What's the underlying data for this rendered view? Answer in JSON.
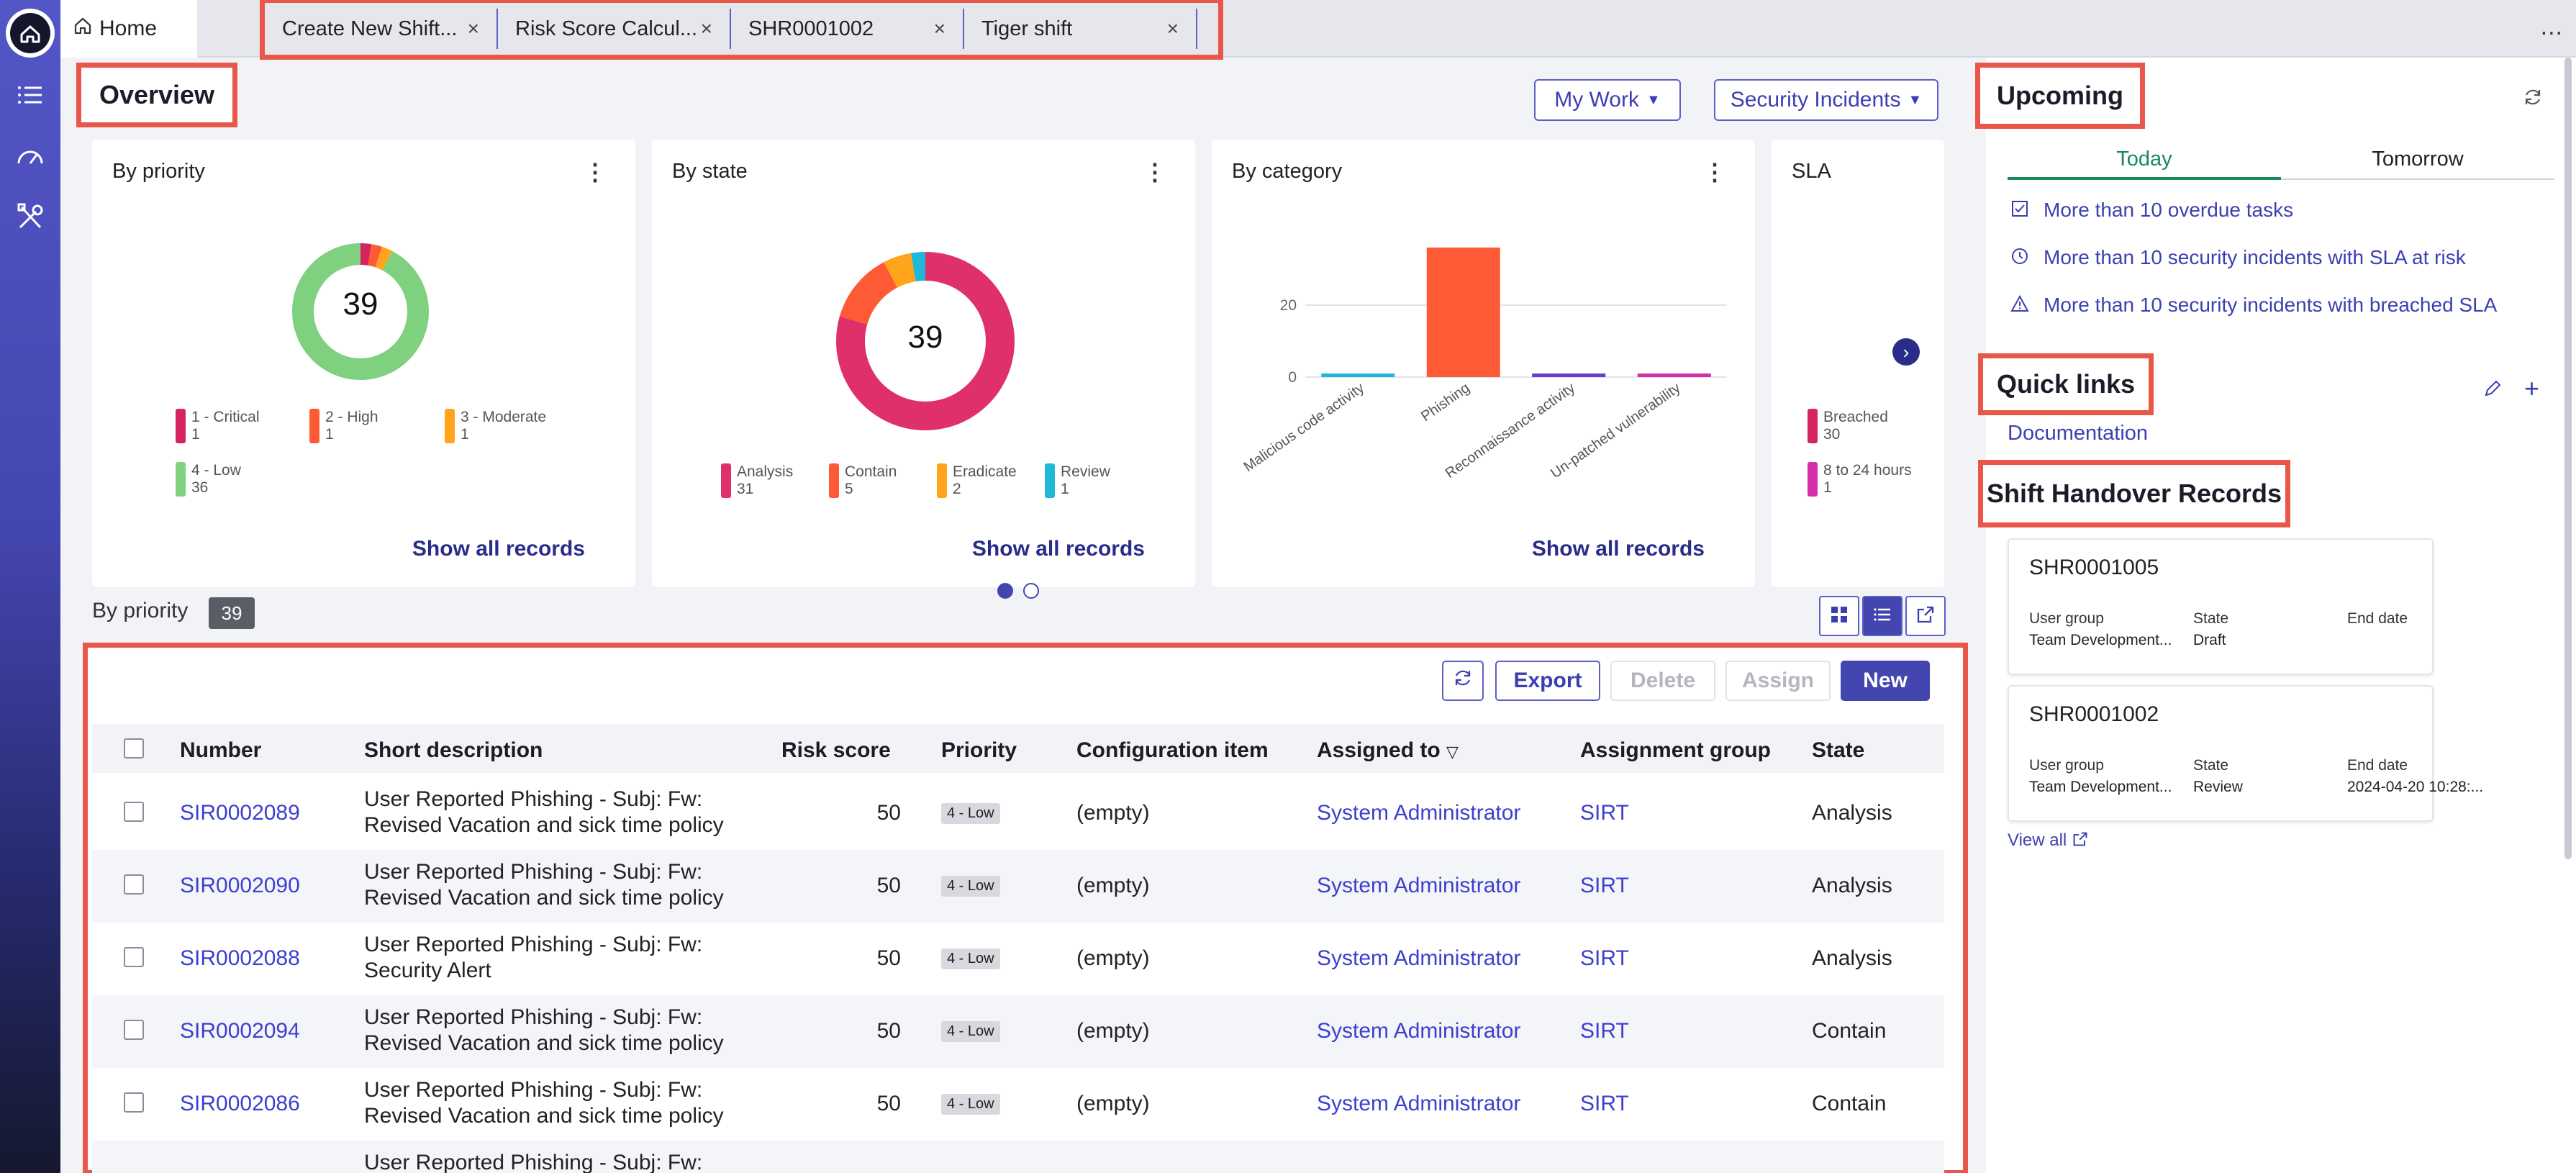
{
  "tabs": {
    "home": "Home",
    "open": [
      "Create New Shift...",
      "Risk Score Calcul...",
      "SHR0001002",
      "Tiger shift"
    ],
    "close_glyph": "×",
    "more": "..."
  },
  "overview": {
    "title": "Overview",
    "my_work": "My Work",
    "security_incidents": "Security Incidents"
  },
  "cards": {
    "priority": {
      "title": "By priority",
      "total": "39",
      "legend": [
        {
          "label": "1 - Critical",
          "count": "1",
          "color": "#d6245f"
        },
        {
          "label": "2 - High",
          "count": "1",
          "color": "#ff5a36"
        },
        {
          "label": "3 - Moderate",
          "count": "1",
          "color": "#ffa41b"
        },
        {
          "label": "4 - Low",
          "count": "36",
          "color": "#7fd07f"
        }
      ],
      "show_all": "Show all records"
    },
    "state": {
      "title": "By state",
      "total": "39",
      "legend": [
        {
          "label": "Analysis",
          "count": "31",
          "color": "#e0306a"
        },
        {
          "label": "Contain",
          "count": "5",
          "color": "#ff5a36"
        },
        {
          "label": "Eradicate",
          "count": "2",
          "color": "#ffa41b"
        },
        {
          "label": "Review",
          "count": "1",
          "color": "#1fb8d8"
        }
      ],
      "show_all": "Show all records"
    },
    "category": {
      "title": "By category",
      "show_all": "Show all records"
    },
    "sla": {
      "title": "SLA",
      "legend": [
        {
          "label": "Breached",
          "count": "30",
          "color": "#d6245f"
        },
        {
          "label": "8 to 24 hours",
          "count": "1",
          "color": "#d62dab"
        }
      ]
    }
  },
  "chart_data": [
    {
      "type": "pie",
      "title": "By priority",
      "categories": [
        "1 - Critical",
        "2 - High",
        "3 - Moderate",
        "4 - Low"
      ],
      "values": [
        1,
        1,
        1,
        36
      ]
    },
    {
      "type": "pie",
      "title": "By state",
      "categories": [
        "Analysis",
        "Contain",
        "Eradicate",
        "Review"
      ],
      "values": [
        31,
        5,
        2,
        1
      ]
    },
    {
      "type": "bar",
      "title": "By category",
      "categories": [
        "Malicious code activity",
        "Phishing",
        "Reconnaissance activity",
        "Un-patched vulnerability"
      ],
      "values": [
        1,
        36,
        1,
        1
      ],
      "colors": [
        "#1fb8d8",
        "#ff5a36",
        "#6a3ad8",
        "#d62dab"
      ],
      "yticks": [
        "0",
        "20"
      ],
      "ylim": [
        0,
        37
      ]
    }
  ],
  "by_priority": {
    "label": "By priority",
    "count": "39"
  },
  "toolbar": {
    "export": "Export",
    "delete": "Delete",
    "assign": "Assign",
    "new": "New"
  },
  "table": {
    "columns": [
      "Number",
      "Short description",
      "Risk score",
      "Priority",
      "Configuration item",
      "Assigned to",
      "Assignment group",
      "State"
    ],
    "rows": [
      {
        "number": "SIR0002089",
        "desc1": "User Reported Phishing - Subj: Fw:",
        "desc2": "Revised Vacation and sick time policy",
        "risk": "50",
        "priority": "4 - Low",
        "ci": "(empty)",
        "assigned": "System Administrator",
        "group": "SIRT",
        "state": "Analysis"
      },
      {
        "number": "SIR0002090",
        "desc1": "User Reported Phishing - Subj: Fw:",
        "desc2": "Revised Vacation and sick time policy",
        "risk": "50",
        "priority": "4 - Low",
        "ci": "(empty)",
        "assigned": "System Administrator",
        "group": "SIRT",
        "state": "Analysis"
      },
      {
        "number": "SIR0002088",
        "desc1": "User Reported Phishing - Subj: Fw:",
        "desc2": "Security Alert",
        "risk": "50",
        "priority": "4 - Low",
        "ci": "(empty)",
        "assigned": "System Administrator",
        "group": "SIRT",
        "state": "Analysis"
      },
      {
        "number": "SIR0002094",
        "desc1": "User Reported Phishing - Subj: Fw:",
        "desc2": "Revised Vacation and sick time policy",
        "risk": "50",
        "priority": "4 - Low",
        "ci": "(empty)",
        "assigned": "System Administrator",
        "group": "SIRT",
        "state": "Contain"
      },
      {
        "number": "SIR0002086",
        "desc1": "User Reported Phishing - Subj: Fw:",
        "desc2": "Revised Vacation and sick time policy",
        "risk": "50",
        "priority": "4 - Low",
        "ci": "(empty)",
        "assigned": "System Administrator",
        "group": "SIRT",
        "state": "Contain"
      },
      {
        "number": "",
        "desc1": "User Reported Phishing - Subj: Fw:",
        "desc2": "",
        "risk": "",
        "priority": "",
        "ci": "",
        "assigned": "",
        "group": "",
        "state": ""
      }
    ]
  },
  "upcoming": {
    "title": "Upcoming",
    "tab_today": "Today",
    "tab_tomorrow": "Tomorrow",
    "items": [
      "More than 10 overdue tasks",
      "More than 10 security incidents with SLA at risk",
      "More than 10 security incidents with breached SLA"
    ]
  },
  "quick_links": {
    "title": "Quick links",
    "documentation": "Documentation"
  },
  "shift_handover": {
    "title": "Shift Handover Records",
    "records": [
      {
        "number": "SHR0001005",
        "user_group_label": "User group",
        "user_group": "Team Development...",
        "state_label": "State",
        "state": "Draft",
        "end_label": "End date",
        "end": ""
      },
      {
        "number": "SHR0001002",
        "user_group_label": "User group",
        "user_group": "Team Development...",
        "state_label": "State",
        "state": "Review",
        "end_label": "End date",
        "end": "2024-04-20 10:28:..."
      }
    ],
    "view_all": "View all"
  },
  "colors": {
    "accent": "#5b5fc7",
    "link": "#3c3fd0",
    "highlight": "#e8574a",
    "green": "#1a8a5a"
  }
}
